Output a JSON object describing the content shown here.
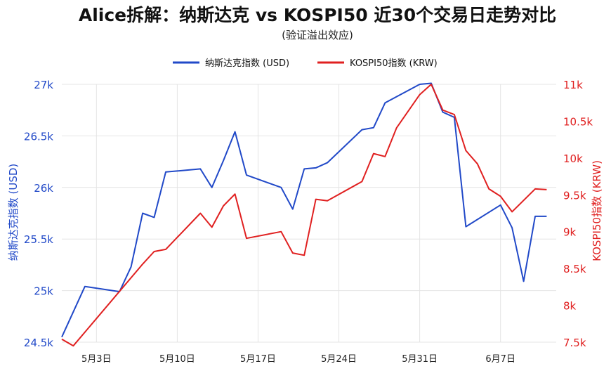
{
  "chart_data": {
    "type": "line",
    "title": "Alice拆解：纳斯达克 vs KOSPI50 近30个交易日走势对比",
    "subtitle": "(验证溢出效应)",
    "x_axis": {
      "type": "date",
      "ticks": [
        {
          "label": "5月3日",
          "date": "2024-05-03"
        },
        {
          "label": "5月10日",
          "date": "2024-05-10"
        },
        {
          "label": "5月17日",
          "date": "2024-05-17"
        },
        {
          "label": "5月24日",
          "date": "2024-05-24"
        },
        {
          "label": "5月31日",
          "date": "2024-05-31"
        },
        {
          "label": "6月7日",
          "date": "2024-06-07"
        }
      ],
      "range": [
        "2024-04-30",
        "2024-06-10"
      ]
    },
    "y_left": {
      "label": "纳斯达克指数 (USD)",
      "range": [
        24500,
        27000
      ],
      "ticks": [
        {
          "v": 24500,
          "label": "24.5k"
        },
        {
          "v": 25000,
          "label": "25k"
        },
        {
          "v": 25500,
          "label": "25.5k"
        },
        {
          "v": 26000,
          "label": "26k"
        },
        {
          "v": 26500,
          "label": "26.5k"
        },
        {
          "v": 27000,
          "label": "27k"
        }
      ],
      "color": "#2149c8"
    },
    "y_right": {
      "label": "KOSPI50指数 (KRW)",
      "range": [
        7500,
        11000
      ],
      "ticks": [
        {
          "v": 7500,
          "label": "7.5k"
        },
        {
          "v": 8000,
          "label": "8k"
        },
        {
          "v": 8500,
          "label": "8.5k"
        },
        {
          "v": 9000,
          "label": "9k"
        },
        {
          "v": 9500,
          "label": "9.5k"
        },
        {
          "v": 10000,
          "label": "10k"
        },
        {
          "v": 10500,
          "label": "10.5k"
        },
        {
          "v": 11000,
          "label": "11k"
        }
      ],
      "color": "#e02020"
    },
    "grid": true,
    "legend_position": "top-center",
    "series": [
      {
        "name": "纳斯达克指数 (USD)",
        "axis": "left",
        "color": "#2149c8",
        "points": [
          {
            "x": "2024-04-30",
            "y": 24550
          },
          {
            "x": "2024-05-02",
            "y": 25040
          },
          {
            "x": "2024-05-05",
            "y": 24990
          },
          {
            "x": "2024-05-06",
            "y": 25230
          },
          {
            "x": "2024-05-07",
            "y": 25750
          },
          {
            "x": "2024-05-08",
            "y": 25710
          },
          {
            "x": "2024-05-09",
            "y": 26150
          },
          {
            "x": "2024-05-12",
            "y": 26180
          },
          {
            "x": "2024-05-13",
            "y": 26000
          },
          {
            "x": "2024-05-14",
            "y": 26260
          },
          {
            "x": "2024-05-15",
            "y": 26540
          },
          {
            "x": "2024-05-16",
            "y": 26120
          },
          {
            "x": "2024-05-19",
            "y": 26000
          },
          {
            "x": "2024-05-20",
            "y": 25790
          },
          {
            "x": "2024-05-21",
            "y": 26180
          },
          {
            "x": "2024-05-22",
            "y": 26190
          },
          {
            "x": "2024-05-23",
            "y": 26240
          },
          {
            "x": "2024-05-26",
            "y": 26560
          },
          {
            "x": "2024-05-27",
            "y": 26580
          },
          {
            "x": "2024-05-28",
            "y": 26820
          },
          {
            "x": "2024-05-31",
            "y": 27000
          },
          {
            "x": "2024-06-01",
            "y": 27010
          },
          {
            "x": "2024-06-02",
            "y": 26730
          },
          {
            "x": "2024-06-03",
            "y": 26680
          },
          {
            "x": "2024-06-04",
            "y": 25620
          },
          {
            "x": "2024-06-07",
            "y": 25830
          },
          {
            "x": "2024-06-08",
            "y": 25610
          },
          {
            "x": "2024-06-09",
            "y": 25090
          },
          {
            "x": "2024-06-10",
            "y": 25720
          },
          {
            "x": "2024-06-11",
            "y": 25720
          }
        ]
      },
      {
        "name": "KOSPI50指数 (KRW)",
        "axis": "right",
        "color": "#e02020",
        "points": [
          {
            "x": "2024-04-30",
            "y": 7540
          },
          {
            "x": "2024-05-01",
            "y": 7450
          },
          {
            "x": "2024-05-07",
            "y": 8560
          },
          {
            "x": "2024-05-08",
            "y": 8730
          },
          {
            "x": "2024-05-09",
            "y": 8760
          },
          {
            "x": "2024-05-12",
            "y": 9250
          },
          {
            "x": "2024-05-13",
            "y": 9060
          },
          {
            "x": "2024-05-14",
            "y": 9350
          },
          {
            "x": "2024-05-15",
            "y": 9510
          },
          {
            "x": "2024-05-16",
            "y": 8910
          },
          {
            "x": "2024-05-19",
            "y": 9000
          },
          {
            "x": "2024-05-20",
            "y": 8710
          },
          {
            "x": "2024-05-21",
            "y": 8680
          },
          {
            "x": "2024-05-22",
            "y": 9440
          },
          {
            "x": "2024-05-23",
            "y": 9420
          },
          {
            "x": "2024-05-26",
            "y": 9680
          },
          {
            "x": "2024-05-27",
            "y": 10060
          },
          {
            "x": "2024-05-28",
            "y": 10020
          },
          {
            "x": "2024-05-29",
            "y": 10410
          },
          {
            "x": "2024-05-31",
            "y": 10860
          },
          {
            "x": "2024-06-01",
            "y": 11000
          },
          {
            "x": "2024-06-02",
            "y": 10650
          },
          {
            "x": "2024-06-03",
            "y": 10590
          },
          {
            "x": "2024-06-04",
            "y": 10100
          },
          {
            "x": "2024-06-05",
            "y": 9920
          },
          {
            "x": "2024-06-06",
            "y": 9580
          },
          {
            "x": "2024-06-07",
            "y": 9480
          },
          {
            "x": "2024-06-08",
            "y": 9270
          },
          {
            "x": "2024-06-10",
            "y": 9580
          },
          {
            "x": "2024-06-11",
            "y": 9570
          }
        ]
      }
    ]
  }
}
